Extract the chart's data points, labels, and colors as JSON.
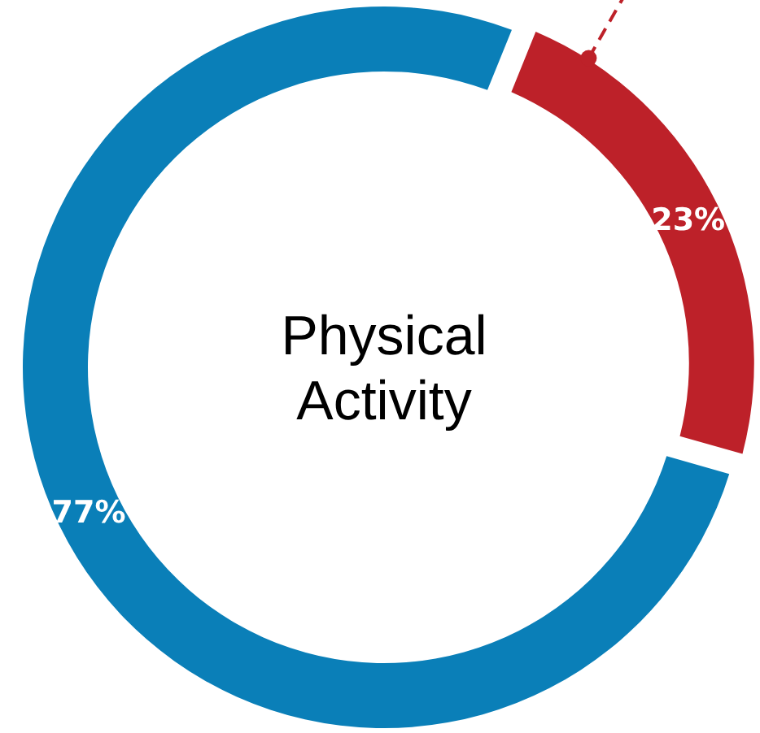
{
  "chart_data": {
    "type": "donut",
    "title": "Physical Activity",
    "categories": [
      null,
      null
    ],
    "values": [
      23,
      77
    ],
    "colors": [
      "#bd2129",
      "#0a7fb8"
    ],
    "value_labels": [
      "23%",
      "77%"
    ]
  }
}
